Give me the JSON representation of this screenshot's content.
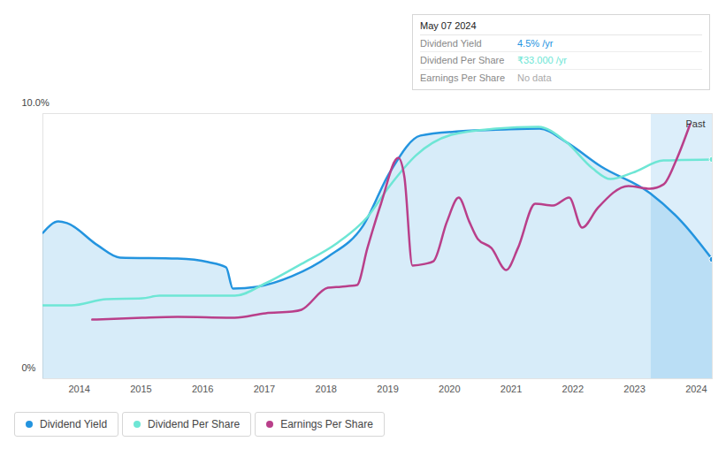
{
  "chart_data": {
    "type": "line",
    "xlim": [
      2013.41,
      2024.26
    ],
    "xticks": [
      2014,
      2015,
      2016,
      2017,
      2018,
      2019,
      2020,
      2021,
      2022,
      2023,
      2024
    ],
    "ylim": [
      0,
      10
    ],
    "yticks": [
      {
        "value": 0,
        "label": "0%"
      },
      {
        "value": 10,
        "label": "10.0%"
      }
    ],
    "grid": true,
    "annotations": [
      {
        "text": "Past",
        "x_start": 2023.27
      }
    ],
    "tooltip": {
      "date": "May 07 2024",
      "rows": [
        {
          "label": "Dividend Yield",
          "value": "4.5% /yr"
        },
        {
          "label": "Dividend Per Share",
          "value": "₹33.000 /yr"
        },
        {
          "label": "Earnings Per Share",
          "value": "No data"
        }
      ]
    },
    "series": [
      {
        "name": "Dividend Yield",
        "color": "#2394df",
        "type": "area",
        "marker": "circle",
        "x": [
          2013.41,
          2013.66,
          2013.8,
          2014.3,
          2014.66,
          2015.59,
          2016.09,
          2016.38,
          2016.49,
          2016.88,
          2017.45,
          2018.03,
          2018.6,
          2019.03,
          2019.53,
          2020.17,
          2020.89,
          2021.46,
          2021.89,
          2022.46,
          2023.25,
          2023.76,
          2024.26
        ],
        "values": [
          5.5,
          5.93,
          5.87,
          5.03,
          4.57,
          4.53,
          4.4,
          4.2,
          3.4,
          3.47,
          3.87,
          4.6,
          5.77,
          7.77,
          9.17,
          9.33,
          9.4,
          9.43,
          8.93,
          8.0,
          7.0,
          5.93,
          4.5
        ]
      },
      {
        "name": "Dividend Per Share",
        "color": "#6ee6d5",
        "type": "line",
        "marker": "circle",
        "x": [
          2013.41,
          2013.87,
          2014.44,
          2015.02,
          2015.3,
          2016.52,
          2017.02,
          2017.6,
          2018.17,
          2018.67,
          2019.03,
          2019.46,
          2020.03,
          2020.75,
          2021.44,
          2021.89,
          2022.32,
          2022.61,
          2022.97,
          2023.47,
          2024.26
        ],
        "values": [
          2.77,
          2.77,
          3.0,
          3.03,
          3.13,
          3.13,
          3.6,
          4.33,
          5.1,
          6.1,
          7.27,
          8.43,
          9.2,
          9.43,
          9.5,
          8.93,
          7.93,
          7.53,
          7.77,
          8.23,
          8.27
        ]
      },
      {
        "name": "Earnings Per Share",
        "color": "#b93f8a",
        "type": "line",
        "x": [
          2014.21,
          2015.02,
          2015.59,
          2016.52,
          2017.02,
          2017.45,
          2017.6,
          2018.03,
          2018.24,
          2018.5,
          2018.67,
          2018.89,
          2019.17,
          2019.27,
          2019.4,
          2019.6,
          2019.74,
          2019.96,
          2020.15,
          2020.32,
          2020.46,
          2020.68,
          2020.92,
          2021.11,
          2021.39,
          2021.68,
          2021.94,
          2022.15,
          2022.4,
          2022.9,
          2023.25,
          2023.47,
          2023.68,
          2023.9
        ],
        "values": [
          2.23,
          2.3,
          2.33,
          2.3,
          2.47,
          2.53,
          2.6,
          3.43,
          3.47,
          3.53,
          4.93,
          6.6,
          8.33,
          7.6,
          4.27,
          4.33,
          4.43,
          5.93,
          6.83,
          5.93,
          5.27,
          4.93,
          4.1,
          4.93,
          6.6,
          6.53,
          6.83,
          5.7,
          6.43,
          7.27,
          7.17,
          7.33,
          8.27,
          9.6
        ]
      }
    ]
  }
}
